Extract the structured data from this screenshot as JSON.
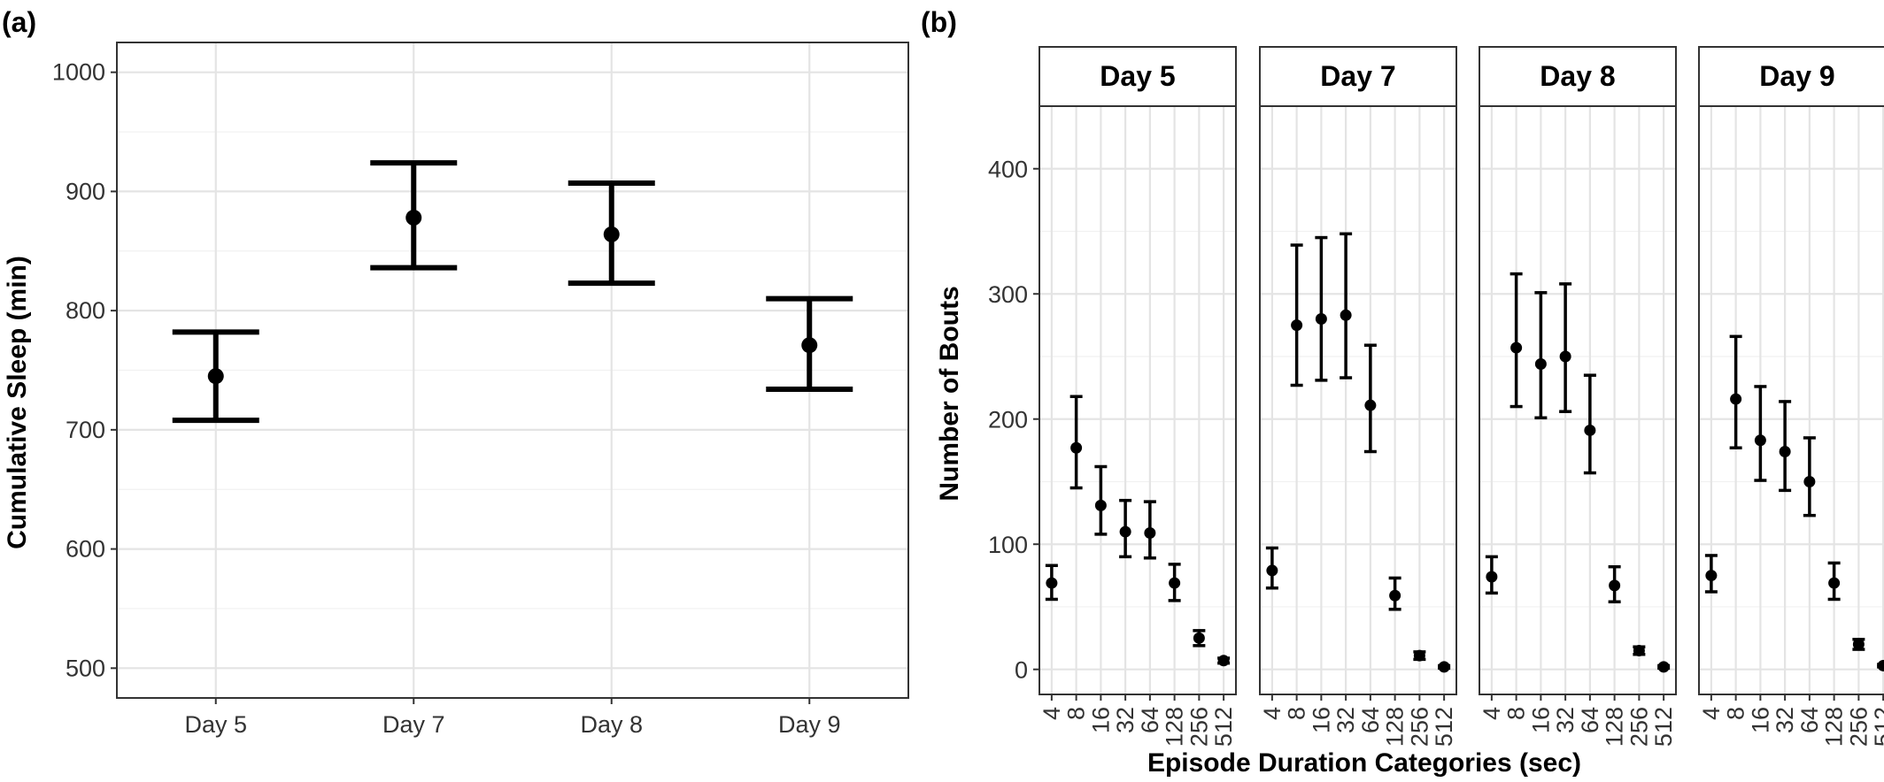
{
  "panel_labels": [
    "(a)",
    "(b)"
  ],
  "chart_data": [
    {
      "type": "errorbar",
      "panel": "(a)",
      "title": "",
      "xlabel": "",
      "ylabel": "Cumulative Sleep (min)",
      "categories": [
        "Day 5",
        "Day 7",
        "Day 8",
        "Day 9"
      ],
      "mean": [
        745,
        878,
        864,
        771
      ],
      "lower": [
        708,
        836,
        823,
        734
      ],
      "upper": [
        782,
        924,
        907,
        810
      ],
      "ylim": [
        475,
        1025
      ],
      "yticks": [
        500,
        600,
        700,
        800,
        900,
        1000
      ],
      "grid": true,
      "legend": "none"
    },
    {
      "type": "errorbar",
      "panel": "(b)",
      "title": "",
      "xlabel": "Episode Duration Categories (sec)",
      "ylabel": "Number of Bouts",
      "categories": [
        "4",
        "8",
        "16",
        "32",
        "64",
        "128",
        "256",
        "512"
      ],
      "ylim": [
        -20,
        450
      ],
      "yticks": [
        0,
        100,
        200,
        300,
        400
      ],
      "grid": true,
      "legend": "none",
      "facets": [
        {
          "label": "Day 5",
          "mean": [
            69,
            177,
            131,
            110,
            109,
            69,
            25,
            7
          ],
          "lower": [
            56,
            145,
            108,
            90,
            89,
            55,
            19,
            5
          ],
          "upper": [
            83,
            218,
            162,
            135,
            134,
            84,
            31,
            9
          ]
        },
        {
          "label": "Day 7",
          "mean": [
            79,
            275,
            280,
            283,
            211,
            59,
            11,
            2
          ],
          "lower": [
            65,
            227,
            231,
            233,
            174,
            48,
            8,
            1
          ],
          "upper": [
            97,
            339,
            345,
            348,
            259,
            73,
            14,
            3
          ]
        },
        {
          "label": "Day 8",
          "mean": [
            74,
            257,
            244,
            250,
            191,
            67,
            15,
            2
          ],
          "lower": [
            61,
            210,
            201,
            206,
            157,
            54,
            12,
            1
          ],
          "upper": [
            90,
            316,
            301,
            308,
            235,
            82,
            18,
            3
          ]
        },
        {
          "label": "Day 9",
          "mean": [
            75,
            216,
            183,
            174,
            150,
            69,
            20,
            3
          ],
          "lower": [
            62,
            177,
            151,
            143,
            123,
            56,
            16,
            2
          ],
          "upper": [
            91,
            266,
            226,
            214,
            185,
            85,
            24,
            4
          ]
        }
      ]
    }
  ]
}
